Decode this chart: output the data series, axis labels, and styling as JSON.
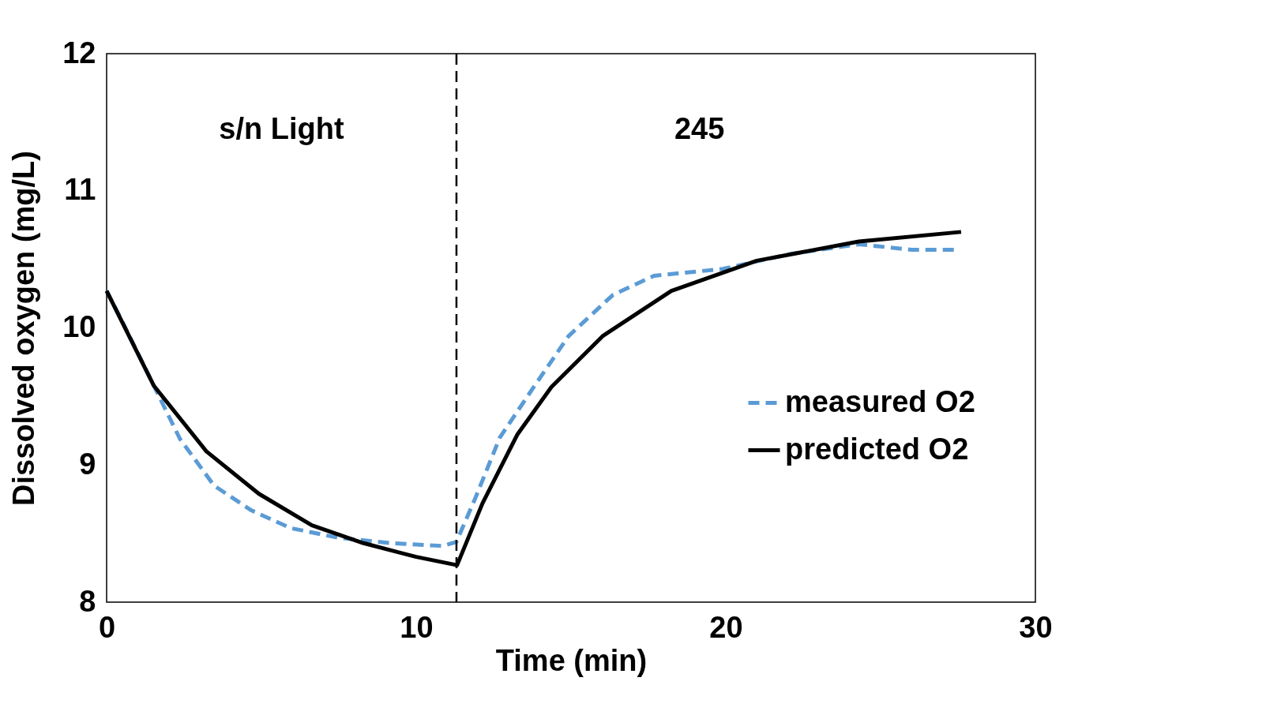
{
  "chart_data": {
    "type": "line",
    "xlabel": "Time (min)",
    "ylabel": "Dissolved oxygen (mg/L)",
    "xlim": [
      0,
      30
    ],
    "xticks": [
      0,
      10,
      20,
      30
    ],
    "ylim": [
      8,
      12
    ],
    "yticks": [
      8,
      9,
      10,
      11,
      12
    ],
    "grid": false,
    "legend": "right",
    "marker": "none",
    "annotations": [
      "s/n Light",
      "245"
    ],
    "ref_lines": [
      {
        "axis": "x",
        "value": 11.3,
        "color": "#000000",
        "line_style": "dashed"
      }
    ],
    "series": [
      {
        "name": "measured O2",
        "color": "#5b9bd5",
        "line_style": "dashed",
        "x": [
          0,
          0.5,
          2.37,
          3.47,
          4.67,
          5.94,
          7.47,
          9.18,
          10.87,
          11.3,
          11.93,
          12.7,
          13.8,
          14.92,
          16.35,
          17.68,
          19.9,
          22.1,
          24.3,
          26.0,
          27.5
        ],
        "values": [
          10.27,
          10.05,
          9.19,
          8.85,
          8.67,
          8.54,
          8.47,
          8.43,
          8.41,
          8.44,
          8.77,
          9.2,
          9.57,
          9.94,
          10.24,
          10.38,
          10.43,
          10.54,
          10.61,
          10.57,
          10.57
        ]
      },
      {
        "name": "predicted O2",
        "color": "#000000",
        "line_style": "solid",
        "x": [
          0,
          1.52,
          3.22,
          4.92,
          6.63,
          8.3,
          10.0,
          11.32,
          12.14,
          13.26,
          14.37,
          16.02,
          18.24,
          21.0,
          24.3,
          27.6
        ],
        "values": [
          10.27,
          9.58,
          9.1,
          8.79,
          8.56,
          8.43,
          8.33,
          8.27,
          8.72,
          9.22,
          9.57,
          9.94,
          10.27,
          10.49,
          10.63,
          10.7
        ]
      }
    ]
  }
}
